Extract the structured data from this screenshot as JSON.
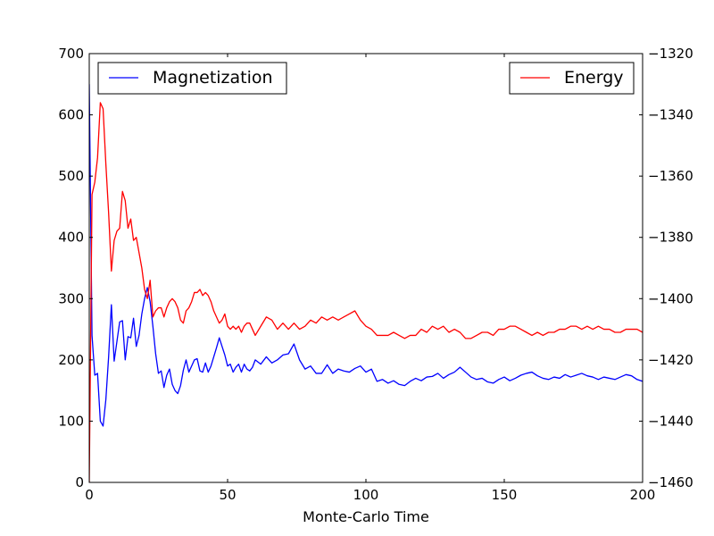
{
  "chart_data": {
    "type": "line",
    "title": "",
    "xlabel": "Monte-Carlo Time",
    "ylabel_left": "",
    "ylabel_right": "",
    "xlim": [
      0,
      200
    ],
    "ylim_left": [
      0,
      700
    ],
    "ylim_right": [
      -1460,
      -1320
    ],
    "xticks": [
      0,
      50,
      100,
      150,
      200
    ],
    "xtick_labels": [
      "0",
      "50",
      "100",
      "150",
      "200"
    ],
    "yticks_left": [
      0,
      100,
      200,
      300,
      400,
      500,
      600,
      700
    ],
    "ytick_labels_left": [
      "0",
      "100",
      "200",
      "300",
      "400",
      "500",
      "600",
      "700"
    ],
    "yticks_right": [
      -1460,
      -1440,
      -1420,
      -1400,
      -1380,
      -1360,
      -1340,
      -1320
    ],
    "ytick_labels_right": [
      "−1460",
      "−1440",
      "−1420",
      "−1400",
      "−1380",
      "−1360",
      "−1340",
      "−1320"
    ],
    "grid": false,
    "series": [
      {
        "name": "Magnetization",
        "axis": "left",
        "color": "#0000ff",
        "legend_position": "top-left",
        "x": [
          0,
          1,
          2,
          3,
          4,
          5,
          6,
          7,
          8,
          9,
          10,
          11,
          12,
          13,
          14,
          15,
          16,
          17,
          18,
          19,
          20,
          21,
          22,
          23,
          24,
          25,
          26,
          27,
          28,
          29,
          30,
          31,
          32,
          33,
          34,
          35,
          36,
          37,
          38,
          39,
          40,
          41,
          42,
          43,
          44,
          45,
          46,
          47,
          48,
          49,
          50,
          51,
          52,
          53,
          54,
          55,
          56,
          57,
          58,
          59,
          60,
          62,
          64,
          66,
          68,
          70,
          72,
          74,
          76,
          78,
          80,
          82,
          84,
          86,
          88,
          90,
          92,
          94,
          96,
          98,
          100,
          102,
          104,
          106,
          108,
          110,
          112,
          114,
          116,
          118,
          120,
          122,
          124,
          126,
          128,
          130,
          132,
          134,
          136,
          138,
          140,
          142,
          144,
          146,
          148,
          150,
          152,
          154,
          156,
          158,
          160,
          162,
          164,
          166,
          168,
          170,
          172,
          174,
          176,
          178,
          180,
          182,
          184,
          186,
          188,
          190,
          192,
          194,
          196,
          198,
          200
        ],
        "values": [
          650,
          240,
          175,
          178,
          100,
          92,
          135,
          205,
          290,
          198,
          230,
          262,
          264,
          200,
          238,
          236,
          268,
          222,
          240,
          275,
          300,
          318,
          295,
          255,
          210,
          178,
          182,
          155,
          175,
          185,
          160,
          150,
          145,
          158,
          183,
          200,
          180,
          190,
          200,
          202,
          182,
          180,
          195,
          180,
          190,
          205,
          220,
          236,
          222,
          208,
          190,
          193,
          180,
          188,
          193,
          180,
          193,
          185,
          182,
          188,
          200,
          193,
          205,
          195,
          200,
          208,
          210,
          226,
          200,
          185,
          190,
          178,
          178,
          192,
          178,
          185,
          182,
          180,
          186,
          190,
          180,
          185,
          165,
          168,
          162,
          166,
          160,
          158,
          165,
          170,
          166,
          172,
          173,
          178,
          170,
          176,
          180,
          188,
          180,
          172,
          168,
          170,
          164,
          162,
          168,
          172,
          166,
          170,
          175,
          178,
          180,
          174,
          170,
          168,
          172,
          170,
          176,
          172,
          175,
          178,
          174,
          172,
          168,
          172,
          170,
          168,
          172,
          176,
          174,
          168,
          165
        ]
      },
      {
        "name": "Energy",
        "axis": "right",
        "color": "#ff0000",
        "legend_position": "top-right",
        "x": [
          0,
          1,
          2,
          3,
          4,
          5,
          6,
          7,
          8,
          9,
          10,
          11,
          12,
          13,
          14,
          15,
          16,
          17,
          18,
          19,
          20,
          21,
          22,
          23,
          24,
          25,
          26,
          27,
          28,
          29,
          30,
          31,
          32,
          33,
          34,
          35,
          36,
          37,
          38,
          39,
          40,
          41,
          42,
          43,
          44,
          45,
          46,
          47,
          48,
          49,
          50,
          51,
          52,
          53,
          54,
          55,
          56,
          57,
          58,
          59,
          60,
          62,
          64,
          66,
          68,
          70,
          72,
          74,
          76,
          78,
          80,
          82,
          84,
          86,
          88,
          90,
          92,
          94,
          96,
          98,
          100,
          102,
          104,
          106,
          108,
          110,
          112,
          114,
          116,
          118,
          120,
          122,
          124,
          126,
          128,
          130,
          132,
          134,
          136,
          138,
          140,
          142,
          144,
          146,
          148,
          150,
          152,
          154,
          156,
          158,
          160,
          162,
          164,
          166,
          168,
          170,
          172,
          174,
          176,
          178,
          180,
          182,
          184,
          186,
          188,
          190,
          192,
          194,
          196,
          198,
          200
        ],
        "values": [
          -1460,
          -1366,
          -1362,
          -1354,
          -1336,
          -1338,
          -1356,
          -1372,
          -1391,
          -1381,
          -1378,
          -1377,
          -1365,
          -1368,
          -1377,
          -1374,
          -1381,
          -1380,
          -1385,
          -1390,
          -1397,
          -1400,
          -1394,
          -1406,
          -1404,
          -1403,
          -1403,
          -1406,
          -1403,
          -1401,
          -1400,
          -1401,
          -1403,
          -1407,
          -1408,
          -1404,
          -1403,
          -1401,
          -1398,
          -1398,
          -1397,
          -1399,
          -1398,
          -1399,
          -1401,
          -1404,
          -1406,
          -1408,
          -1407,
          -1405,
          -1409,
          -1410,
          -1409,
          -1410,
          -1409,
          -1411,
          -1409,
          -1408,
          -1408,
          -1410,
          -1412,
          -1409,
          -1406,
          -1407,
          -1410,
          -1408,
          -1410,
          -1408,
          -1410,
          -1409,
          -1407,
          -1408,
          -1406,
          -1407,
          -1406,
          -1407,
          -1406,
          -1405,
          -1404,
          -1407,
          -1409,
          -1410,
          -1412,
          -1412,
          -1412,
          -1411,
          -1412,
          -1413,
          -1412,
          -1412,
          -1410,
          -1411,
          -1409,
          -1410,
          -1409,
          -1411,
          -1410,
          -1411,
          -1413,
          -1413,
          -1412,
          -1411,
          -1411,
          -1412,
          -1410,
          -1410,
          -1409,
          -1409,
          -1410,
          -1411,
          -1412,
          -1411,
          -1412,
          -1411,
          -1411,
          -1410,
          -1410,
          -1409,
          -1409,
          -1410,
          -1409,
          -1410,
          -1409,
          -1410,
          -1410,
          -1411,
          -1411,
          -1410,
          -1410,
          -1410,
          -1411
        ]
      }
    ]
  }
}
